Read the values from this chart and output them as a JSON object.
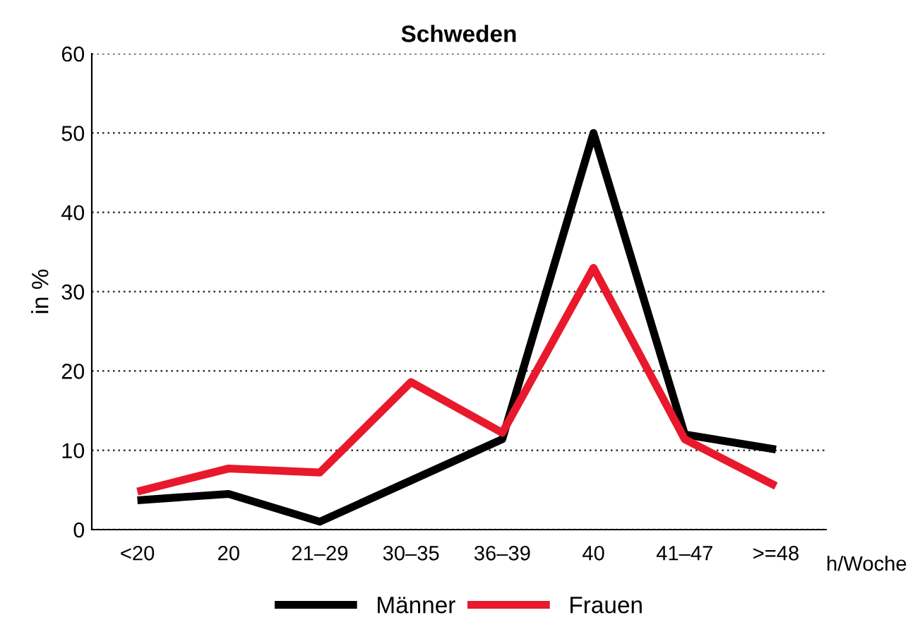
{
  "chart_data": {
    "type": "line",
    "title": "Schweden",
    "ylabel": "in %",
    "xlabel": "h/Woche",
    "categories": [
      "<20",
      "20",
      "21–29",
      "30–35",
      "36–39",
      "40",
      "41–47",
      ">=48"
    ],
    "series": [
      {
        "name": "Männer",
        "color": "#000000",
        "values": [
          3.7,
          4.5,
          1.0,
          6.2,
          11.4,
          50,
          12,
          10.1
        ]
      },
      {
        "name": "Frauen",
        "color": "#e8192c",
        "values": [
          4.8,
          7.7,
          7.2,
          18.6,
          12.2,
          33,
          11.4,
          5.5
        ]
      }
    ],
    "ylim": [
      0,
      60
    ],
    "yticks": [
      0,
      10,
      20,
      30,
      40,
      50,
      60
    ],
    "grid": "y",
    "legend": "bottom",
    "marker": "none",
    "line_style": "solid"
  }
}
